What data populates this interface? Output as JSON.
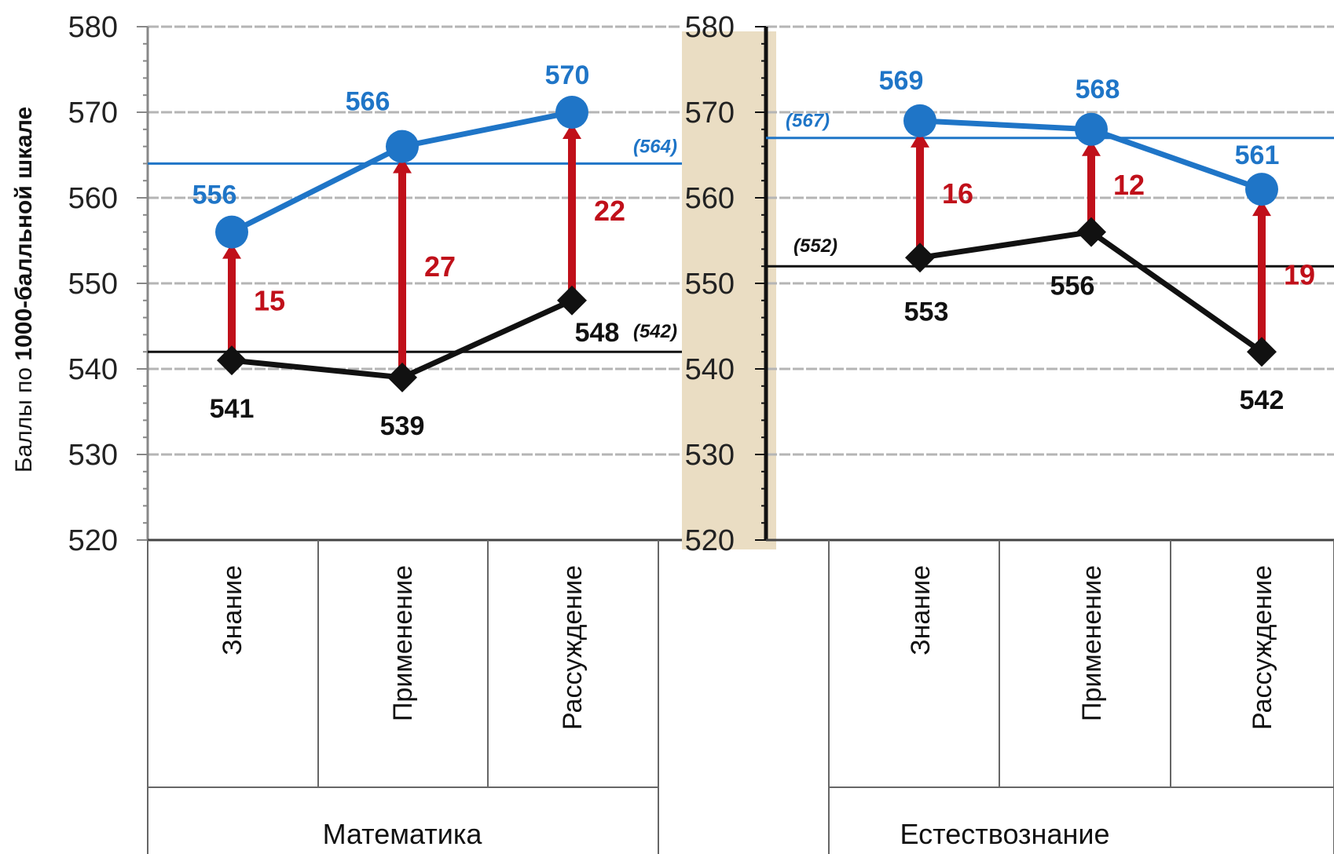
{
  "colors": {
    "top_series": "#1f75c7",
    "bottom_series": "#111111",
    "difference": "#c0101a",
    "grid": "#b5b5b5",
    "separator_band": "#e6d7b8"
  },
  "chart_data": {
    "type": "line",
    "ylabel_parts": [
      "Баллы ",
      "по ",
      "1000-балльной шкале"
    ],
    "ylim": [
      520,
      580
    ],
    "yticks": [
      520,
      530,
      540,
      550,
      560,
      570,
      580
    ],
    "grid": true,
    "panels": [
      {
        "name": "Математика",
        "categories": [
          "Знание",
          "Применение",
          "Рассуждение"
        ],
        "top_values": [
          556,
          566,
          570
        ],
        "bottom_values": [
          541,
          539,
          548
        ],
        "differences": [
          15,
          27,
          22
        ],
        "top_ref_value": 564,
        "top_ref_label": "(564)",
        "bottom_ref_value": 542,
        "bottom_ref_label": "(542)"
      },
      {
        "name": "Естествознание",
        "categories": [
          "Знание",
          "Применение",
          "Рассуждение"
        ],
        "top_values": [
          569,
          568,
          561
        ],
        "bottom_values": [
          553,
          556,
          542
        ],
        "differences": [
          16,
          12,
          19
        ],
        "top_ref_value": 567,
        "top_ref_label": "(567)",
        "bottom_ref_value": 552,
        "bottom_ref_label": "(552)"
      }
    ]
  }
}
